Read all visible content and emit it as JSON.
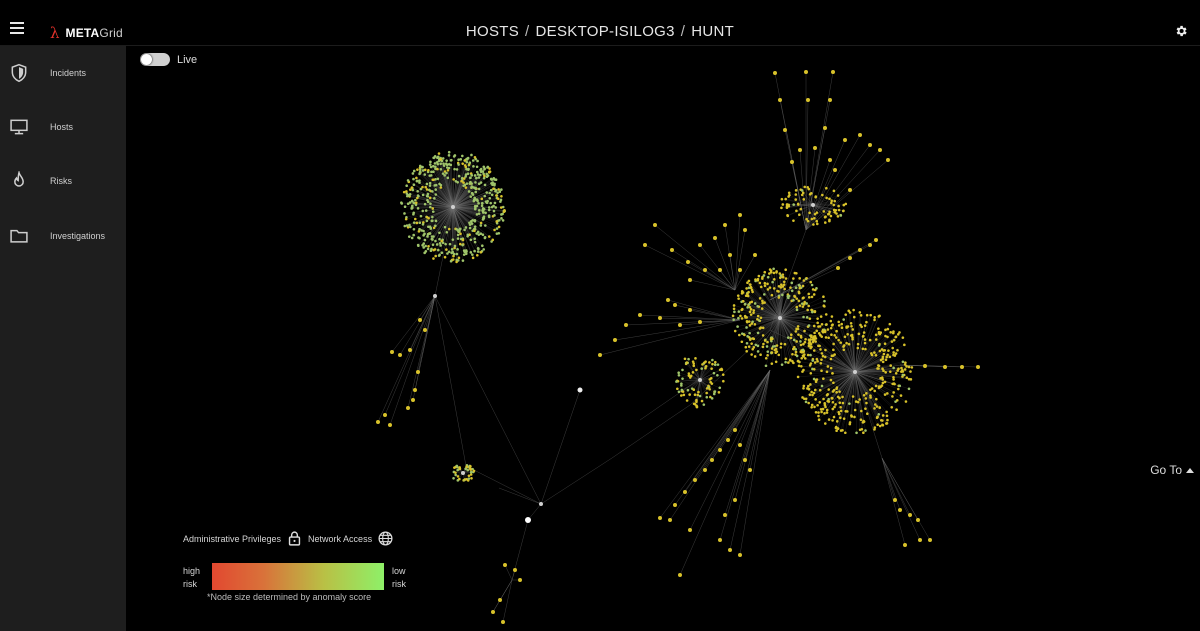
{
  "app": {
    "logo_prefix": "META",
    "logo_suffix": "Grid",
    "icons": {
      "menu": "hamburger-icon",
      "logo": "lambda-icon",
      "settings": "gear-icon"
    }
  },
  "breadcrumb": [
    "HOSTS",
    "DESKTOP-ISILOG3",
    "HUNT"
  ],
  "breadcrumb_separator": "/",
  "sidebar": {
    "items": [
      {
        "label": "Incidents",
        "icon": "shield-icon"
      },
      {
        "label": "Hosts",
        "icon": "monitor-icon"
      },
      {
        "label": "Risks",
        "icon": "flame-icon"
      },
      {
        "label": "Investigations",
        "icon": "folder-icon"
      }
    ]
  },
  "live_toggle": {
    "label": "Live",
    "on": false
  },
  "goto": {
    "label": "Go To"
  },
  "legend": {
    "admin_label": "Administrative Privileges",
    "network_label": "Network Access",
    "high_label": [
      "high",
      "risk"
    ],
    "low_label": [
      "low",
      "risk"
    ],
    "note": "*Node size determined by anomaly score",
    "colors": {
      "high": "#e24830",
      "mid": "#b9c045",
      "low": "#8ef068"
    }
  },
  "graph": {
    "colors": {
      "node_yellow": "#d8c22a",
      "node_green": "#9fc46a",
      "edge": "#6f6f6f"
    }
  }
}
